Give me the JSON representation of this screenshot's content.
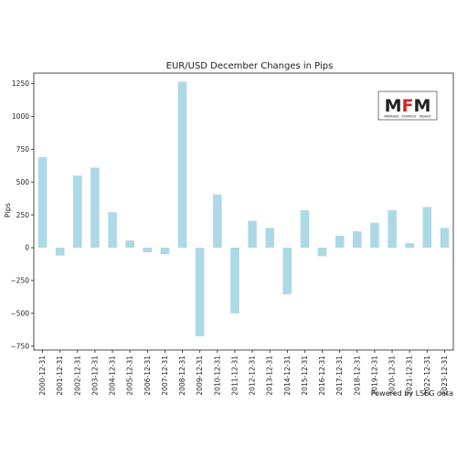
{
  "chart_data": {
    "type": "bar",
    "title": "EUR/USD December Changes in Pips",
    "xlabel": "",
    "ylabel": "Pips",
    "ylim": [
      -780,
      1330
    ],
    "yticks": [
      -750,
      -500,
      -250,
      0,
      250,
      500,
      750,
      1000,
      1250
    ],
    "grid": false,
    "color": "#add8e6",
    "categories": [
      "2000-12-31",
      "2001-12-31",
      "2002-12-31",
      "2003-12-31",
      "2004-12-31",
      "2005-12-31",
      "2006-12-31",
      "2007-12-31",
      "2008-12-31",
      "2009-12-31",
      "2010-12-31",
      "2011-12-31",
      "2012-12-31",
      "2013-12-31",
      "2014-12-31",
      "2015-12-31",
      "2016-12-31",
      "2017-12-31",
      "2018-12-31",
      "2019-12-31",
      "2020-12-31",
      "2021-12-31",
      "2022-12-31",
      "2023-12-31"
    ],
    "values": [
      690,
      -60,
      550,
      610,
      270,
      55,
      -35,
      -50,
      1265,
      -675,
      405,
      -500,
      205,
      150,
      -355,
      285,
      -65,
      90,
      125,
      190,
      285,
      35,
      310,
      150
    ]
  },
  "source_note": "Powered by LSEG data",
  "logo": {
    "text": "MFM",
    "tagline": "MANAGER . STRATEGY . INSIGHT",
    "colors": {
      "dark": "#222222",
      "red": "#d4242a"
    }
  }
}
